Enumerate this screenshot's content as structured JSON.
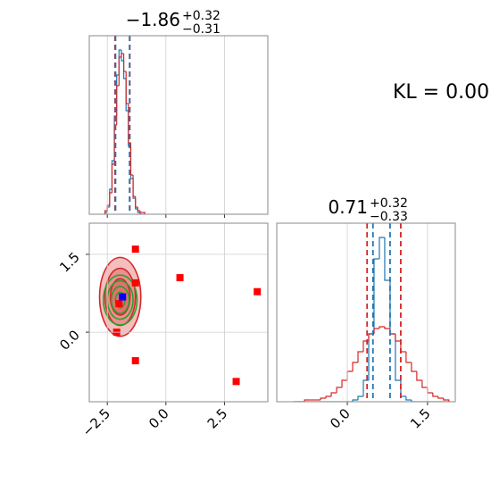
{
  "annotation": "KL = 0.00",
  "chart_data": [
    {
      "type": "histogram",
      "title": "−1.86",
      "title_upper": "+0.32",
      "title_lower": "−0.31",
      "bins": [
        -2.6,
        -2.5,
        -2.4,
        -2.3,
        -2.2,
        -2.1,
        -2.0,
        -1.9,
        -1.8,
        -1.7,
        -1.6,
        -1.5,
        -1.4,
        -1.3,
        -1.2,
        -1.1,
        -1.0,
        -0.9
      ],
      "series": [
        {
          "color": "#1f77b4",
          "values": [
            1,
            4,
            14,
            30,
            55,
            78,
            92,
            86,
            76,
            58,
            38,
            20,
            9,
            3,
            1,
            0,
            0
          ]
        },
        {
          "color": "#d62728",
          "values": [
            2,
            5,
            12,
            28,
            50,
            72,
            88,
            90,
            80,
            62,
            40,
            22,
            10,
            4,
            2,
            1,
            1
          ]
        }
      ],
      "quantile_lines": [
        {
          "color": "#d62728",
          "values": [
            -2.17,
            -1.54
          ]
        },
        {
          "color": "#1f77b4",
          "values": [
            -2.15,
            -1.55
          ]
        }
      ],
      "xlim": [
        -3.27,
        4.35
      ],
      "ylim": [
        0,
        100
      ],
      "xticks": [
        -2.5,
        0,
        2.5
      ],
      "grid": true
    },
    {
      "type": "scatter",
      "x": [
        -1.3,
        -1.3,
        0.6,
        3.9,
        -2.0,
        -2.1,
        -1.3,
        3.0
      ],
      "y": [
        1.6,
        0.95,
        1.05,
        0.78,
        0.55,
        0.0,
        -0.55,
        -0.95
      ],
      "color": "#ff0000",
      "truth": {
        "x": -1.85,
        "y": 0.68,
        "color": "#0000ff"
      },
      "contours": [
        {
          "color": "#d62728",
          "filled": true,
          "cx": -1.95,
          "cy": 0.68,
          "rx": [
            0.88,
            0.65,
            0.42
          ],
          "ry": [
            0.76,
            0.55,
            0.35
          ]
        },
        {
          "color": "#2ca02c",
          "filled": false,
          "cx": -1.95,
          "cy": 0.62,
          "rx": [
            0.72,
            0.55,
            0.38,
            0.2
          ],
          "ry": [
            0.48,
            0.37,
            0.26,
            0.15
          ]
        }
      ],
      "xlim": [
        -3.27,
        4.35
      ],
      "ylim": [
        -1.34,
        2.1
      ],
      "xticks": [
        {
          "value": -2.5,
          "label": "−2.5"
        },
        {
          "value": 0,
          "label": "0.0"
        },
        2.5
      ],
      "yticks": [
        {
          "value": 0,
          "label": "0.0"
        },
        1.5
      ],
      "grid": true
    },
    {
      "type": "histogram",
      "title": "0.71",
      "title_upper": "+0.32",
      "title_lower": "−0.33",
      "bins": [
        -1.0,
        -0.9,
        -0.8,
        -0.7,
        -0.6,
        -0.5,
        -0.4,
        -0.3,
        -0.2,
        -0.1,
        0.0,
        0.1,
        0.2,
        0.3,
        0.4,
        0.5,
        0.6,
        0.7,
        0.8,
        0.9,
        1.0,
        1.1,
        1.2,
        1.3,
        1.4,
        1.5,
        1.6,
        1.7,
        1.8,
        1.9
      ],
      "series": [
        {
          "color": "#1f77b4",
          "values": [
            0,
            0,
            0,
            0,
            0,
            0,
            0,
            0,
            0,
            0,
            0,
            1,
            3,
            12,
            38,
            80,
            92,
            68,
            38,
            12,
            3,
            1,
            0,
            0,
            0,
            0,
            0,
            0,
            0
          ]
        },
        {
          "color": "#d62728",
          "values": [
            0,
            0,
            1,
            1,
            1,
            2,
            3,
            5,
            8,
            12,
            17,
            22,
            28,
            34,
            38,
            41,
            42,
            41,
            38,
            34,
            28,
            22,
            17,
            12,
            8,
            5,
            3,
            2,
            1
          ]
        }
      ],
      "quantile_lines": [
        {
          "color": "#d62728",
          "values": [
            0.37,
            1.0
          ]
        },
        {
          "color": "#1f77b4",
          "values": [
            0.48,
            0.8
          ]
        }
      ],
      "xlim": [
        -1.32,
        2.02
      ],
      "ylim": [
        0,
        100
      ],
      "xticks": [
        {
          "value": 0,
          "label": "0.0"
        },
        1.5
      ],
      "grid": true
    }
  ]
}
